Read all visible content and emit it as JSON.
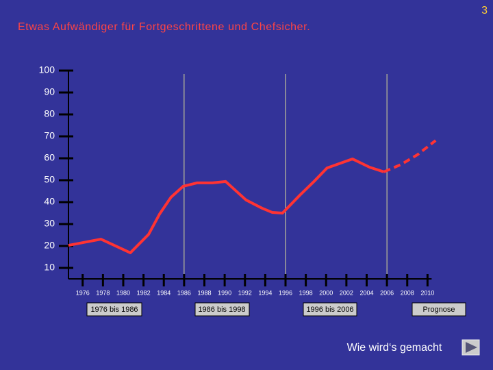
{
  "slide_number": "3",
  "buttons": [
    "1976 bis 1986",
    "1986 bis 1998",
    "1996 bis 2006",
    "Prognose"
  ],
  "link": "Wie wird‘s gemacht",
  "chart_data": {
    "type": "line",
    "title": "Etwas Aufwändiger für Fortgeschrittene und Chefsicher.",
    "xlim": [
      1974.6,
      2012
    ],
    "ylim": [
      5,
      100
    ],
    "xticks": [
      1976,
      1978,
      1980,
      1982,
      1984,
      1986,
      1988,
      1990,
      1992,
      1994,
      1996,
      1998,
      2000,
      2002,
      2004,
      2006,
      2008,
      2010
    ],
    "yticks": [
      100,
      90,
      80,
      70,
      60,
      50,
      40,
      30,
      20,
      10
    ],
    "markers": [
      1986,
      1996,
      2006
    ],
    "grid": false,
    "series": [
      {
        "color": "#ff3333",
        "dashed": false,
        "x": [
          1974.6,
          1977.8,
          1980.7,
          1982.5,
          1983.6,
          1984.7,
          1985.9,
          1987.3,
          1988.8,
          1990.1,
          1992.1,
          1993.7,
          1994.7,
          1995.7,
          1997.4,
          1998.8,
          2000.1,
          2002.6,
          2004.3,
          2005.7
        ],
        "values": [
          20.3,
          23.1,
          16.9,
          25.3,
          34.7,
          42.2,
          47.2,
          48.8,
          48.8,
          49.4,
          41.0,
          37.2,
          35.3,
          35.0,
          43.1,
          49.4,
          55.6,
          59.7,
          55.9,
          53.8
        ]
      },
      {
        "color": "#ff3333",
        "dashed": true,
        "x": [
          2005.7,
          2007.4,
          2009.0,
          2010.8
        ],
        "values": [
          53.8,
          57.2,
          61.6,
          68.1
        ]
      }
    ]
  }
}
